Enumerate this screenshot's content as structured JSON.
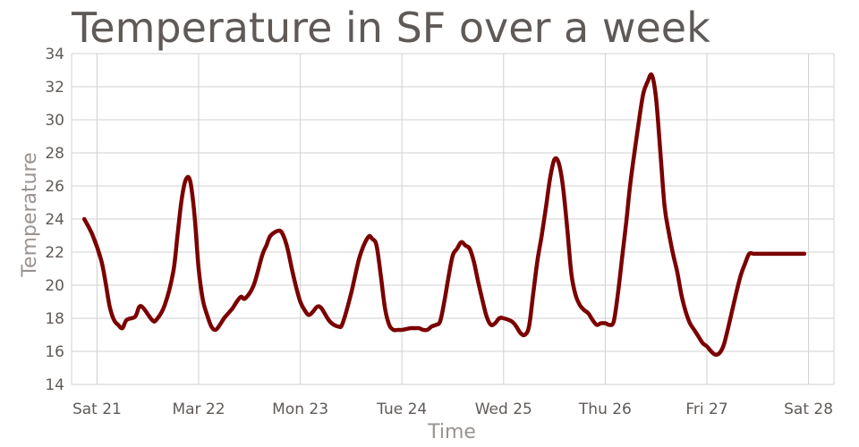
{
  "chart_data": {
    "type": "line",
    "title": "Temperature in SF over a week",
    "xlabel": "Time",
    "ylabel": "Temperature",
    "ylim": [
      14,
      34
    ],
    "yticks": [
      14,
      16,
      18,
      20,
      22,
      24,
      26,
      28,
      30,
      32,
      34
    ],
    "xlim_hours": [
      -6,
      174
    ],
    "xticks": [
      {
        "label": "Sat 21",
        "hour": 0
      },
      {
        "label": "Mar 22",
        "hour": 24
      },
      {
        "label": "Mon 23",
        "hour": 48
      },
      {
        "label": "Tue 24",
        "hour": 72
      },
      {
        "label": "Wed 25",
        "hour": 96
      },
      {
        "label": "Thu 26",
        "hour": 120
      },
      {
        "label": "Fri 27",
        "hour": 144
      },
      {
        "label": "Sat 28",
        "hour": 168
      }
    ],
    "grid": true,
    "line_color": "#7b0000",
    "series": [
      {
        "x": [
          -3,
          -1,
          1,
          2,
          3,
          4,
          5,
          6,
          7,
          9,
          10,
          11,
          13,
          14,
          16,
          18,
          19,
          20,
          21,
          22,
          23,
          24,
          25,
          26,
          27,
          28,
          29,
          30,
          31,
          32,
          33,
          34,
          35,
          37,
          39,
          40,
          41,
          43,
          44,
          45,
          46,
          47,
          48,
          49,
          50,
          51,
          52,
          53,
          55,
          57,
          58,
          60,
          62,
          64,
          65,
          66,
          67,
          68,
          69,
          70,
          71,
          72,
          74,
          75,
          76,
          77,
          78,
          79,
          80,
          81,
          82,
          83,
          84,
          85,
          86,
          87,
          88,
          89,
          90,
          91,
          92,
          93,
          94,
          95,
          96,
          98,
          99,
          100,
          101,
          102,
          103,
          104,
          105,
          106,
          107,
          108,
          109,
          110,
          111,
          112,
          113,
          114,
          115,
          116,
          117,
          118,
          119,
          120,
          121,
          122,
          123,
          124,
          125,
          126,
          128,
          129,
          130,
          131,
          132,
          133,
          134,
          135,
          136,
          137,
          138,
          139,
          140,
          141,
          142,
          143,
          144,
          145,
          146,
          147,
          148,
          149,
          150,
          151,
          152,
          153,
          154,
          155,
          156,
          157,
          158,
          159,
          160,
          161,
          162,
          163,
          164,
          165,
          166,
          167
        ],
        "y": [
          24,
          23,
          21.5,
          20.2,
          18.7,
          17.9,
          17.6,
          17.4,
          17.9,
          18.1,
          18.7,
          18.6,
          17.9,
          17.9,
          18.8,
          20.8,
          23.0,
          25.2,
          26.4,
          26.3,
          24.3,
          21.0,
          19.1,
          18.2,
          17.5,
          17.3,
          17.6,
          18.0,
          18.3,
          18.6,
          19.0,
          19.3,
          19.2,
          20.0,
          21.8,
          22.4,
          23.0,
          23.3,
          23.0,
          22.2,
          21.0,
          19.9,
          19.0,
          18.5,
          18.2,
          18.4,
          18.7,
          18.6,
          17.8,
          17.5,
          17.7,
          19.5,
          21.7,
          22.9,
          22.8,
          22.4,
          20.6,
          18.6,
          17.6,
          17.3,
          17.3,
          17.3,
          17.4,
          17.4,
          17.4,
          17.3,
          17.3,
          17.5,
          17.6,
          17.8,
          19.0,
          20.5,
          21.8,
          22.2,
          22.6,
          22.4,
          22.2,
          21.4,
          20.2,
          19.1,
          18.1,
          17.6,
          17.7,
          18.0,
          18.0,
          17.8,
          17.5,
          17.1,
          17.0,
          17.5,
          19.5,
          21.5,
          23.0,
          24.7,
          26.5,
          27.6,
          27.4,
          26.0,
          23.5,
          20.7,
          19.4,
          18.8,
          18.5,
          18.3,
          17.9,
          17.6,
          17.7,
          17.7,
          17.6,
          17.8,
          19.5,
          21.7,
          23.9,
          26.3,
          30.0,
          31.6,
          32.3,
          32.7,
          31.3,
          28.1,
          24.8,
          23.2,
          21.9,
          20.8,
          19.4,
          18.4,
          17.7,
          17.3,
          16.9,
          16.5,
          16.3,
          16.0,
          15.8,
          15.9,
          16.4,
          17.4,
          18.5,
          19.6,
          20.6,
          21.3,
          21.9,
          21.9,
          21.9,
          21.9,
          21.9,
          21.9,
          21.9,
          21.9,
          21.9,
          21.9,
          21.9,
          21.9,
          21.9,
          21.9
        ]
      }
    ]
  }
}
